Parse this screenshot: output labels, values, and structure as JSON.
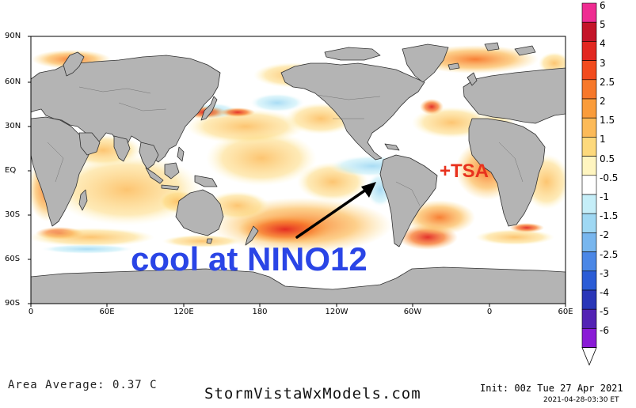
{
  "map": {
    "lat_labels": [
      "90N",
      "60N",
      "30N",
      "EQ",
      "30S",
      "60S",
      "90S"
    ],
    "lon_labels": [
      "0",
      "60E",
      "120E",
      "180",
      "120W",
      "60W",
      "0",
      "60E"
    ],
    "annotations": {
      "cool": "cool at NINO12",
      "tsa": "+TSA"
    },
    "colors": {
      "land": "#b4b4b4",
      "coast": "#303030",
      "ocean_neutral": "#ffffff",
      "annotation_blue": "#2a45e6",
      "annotation_red": "#e8321e",
      "arrow": "#000000"
    }
  },
  "colorbar": {
    "labels": [
      "6",
      "5",
      "4",
      "3",
      "2.5",
      "2",
      "1.5",
      "1",
      "0.5",
      "-0.5",
      "-1",
      "-1.5",
      "-2",
      "-2.5",
      "-3",
      "-4",
      "-5",
      "-6"
    ],
    "colors": [
      "#ef2c92",
      "#c41429",
      "#e22720",
      "#f24b1e",
      "#f7782a",
      "#fa9c3b",
      "#fcba58",
      "#fdd97c",
      "#fff5c0",
      "#ffffff",
      "#c5eef8",
      "#9fd8f3",
      "#78b6ee",
      "#4b87e6",
      "#2b5cd6",
      "#2a36b8",
      "#5322b4",
      "#8a1bd6"
    ],
    "units": ""
  },
  "footer": {
    "area_average": "Area Average: 0.37 C",
    "brand": "StormVistaWxModels.com",
    "init": "Init: 00z Tue 27 Apr 2021",
    "valid": "2021-04-28-03:30 ET"
  }
}
